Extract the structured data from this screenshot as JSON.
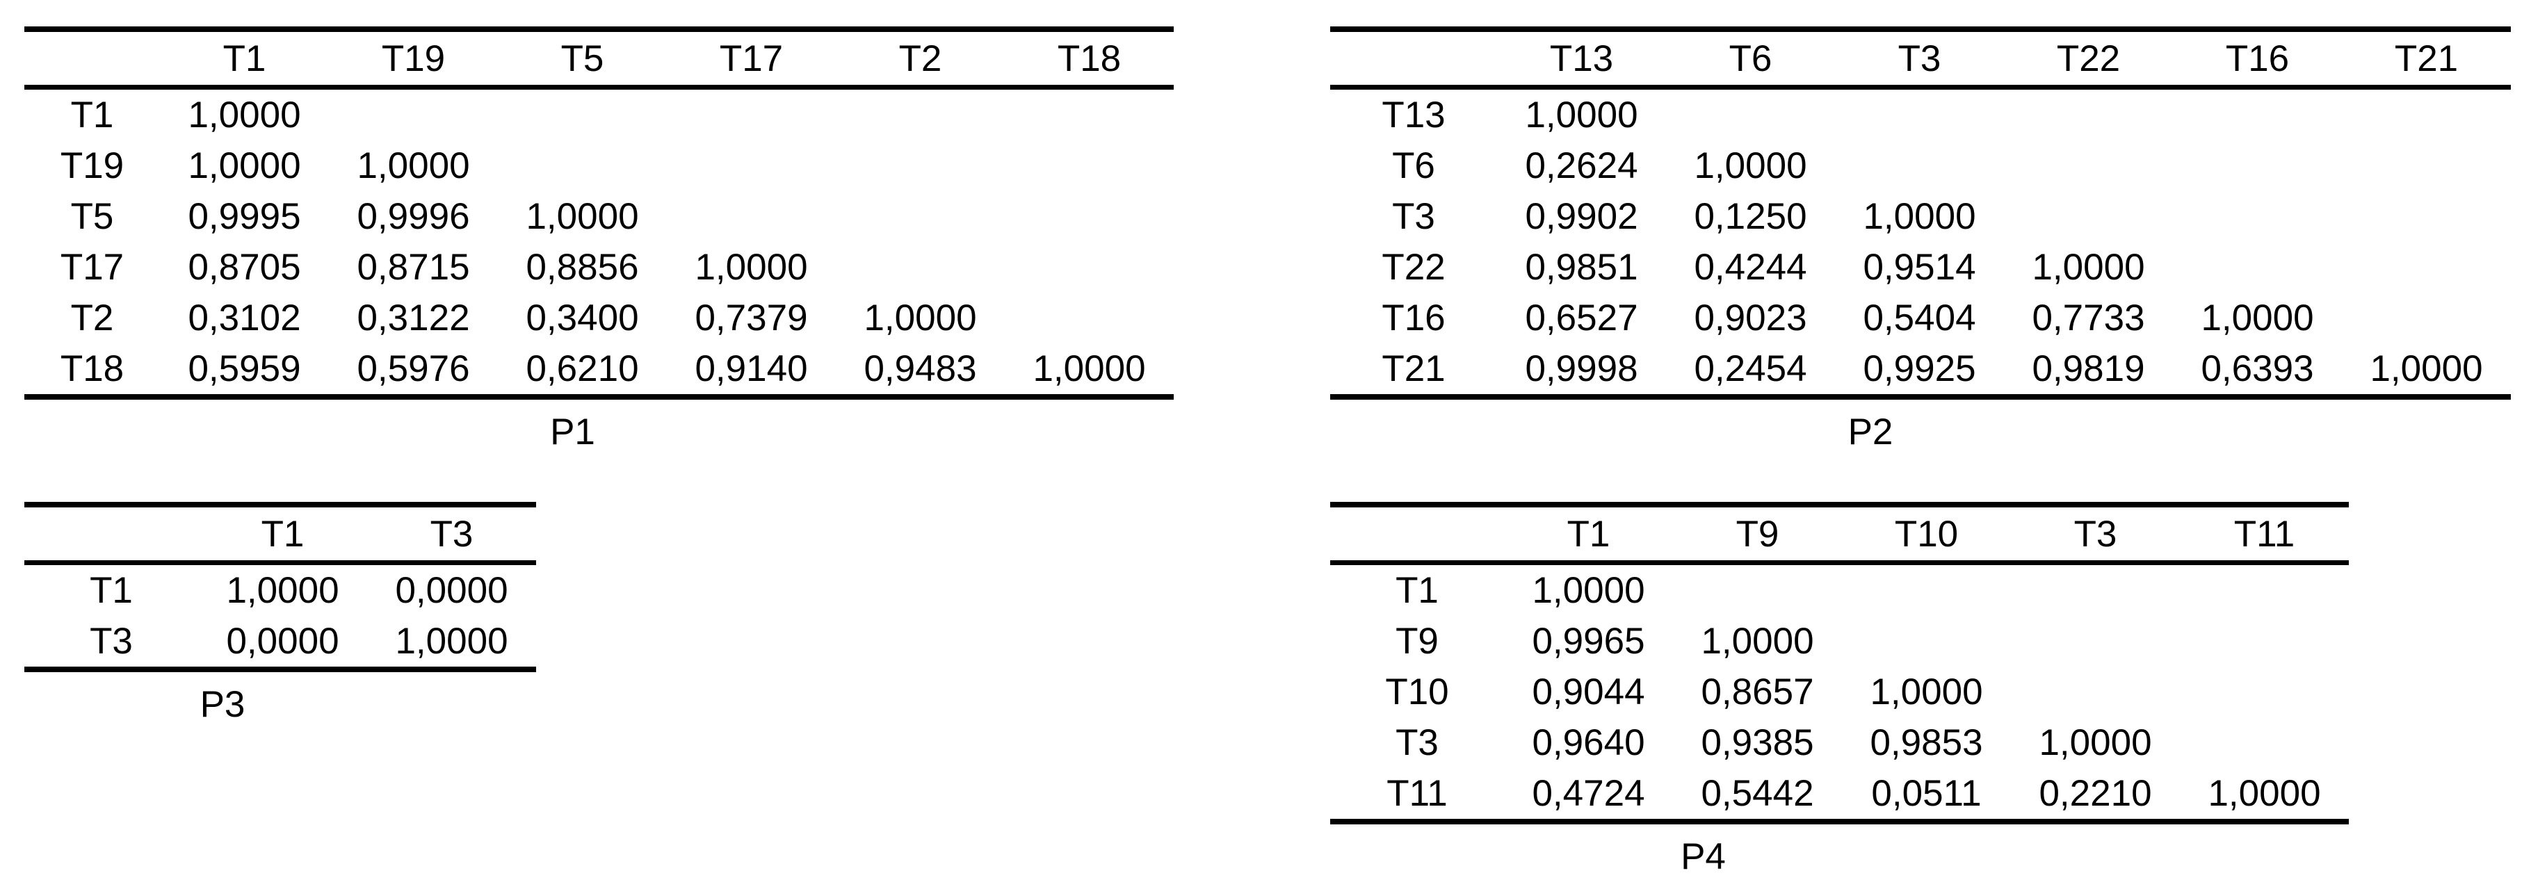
{
  "colors": {
    "background": "#ffffff",
    "text": "#000000",
    "rule": "#000000"
  },
  "tables": [
    {
      "caption": "P1",
      "columns": [
        "T1",
        "T19",
        "T5",
        "T17",
        "T2",
        "T18"
      ],
      "rows": [
        {
          "label": "T1",
          "values": [
            "1,0000"
          ]
        },
        {
          "label": "T19",
          "values": [
            "1,0000",
            "1,0000"
          ]
        },
        {
          "label": "T5",
          "values": [
            "0,9995",
            "0,9996",
            "1,0000"
          ]
        },
        {
          "label": "T17",
          "values": [
            "0,8705",
            "0,8715",
            "0,8856",
            "1,0000"
          ]
        },
        {
          "label": "T2",
          "values": [
            "0,3102",
            "0,3122",
            "0,3400",
            "0,7379",
            "1,0000"
          ]
        },
        {
          "label": "T18",
          "values": [
            "0,5959",
            "0,5976",
            "0,6210",
            "0,9140",
            "0,9483",
            "1,0000"
          ]
        }
      ]
    },
    {
      "caption": "P2",
      "columns": [
        "T13",
        "T6",
        "T3",
        "T22",
        "T16",
        "T21"
      ],
      "rows": [
        {
          "label": "T13",
          "values": [
            "1,0000"
          ]
        },
        {
          "label": "T6",
          "values": [
            "0,2624",
            "1,0000"
          ]
        },
        {
          "label": "T3",
          "values": [
            "0,9902",
            "0,1250",
            "1,0000"
          ]
        },
        {
          "label": "T22",
          "values": [
            "0,9851",
            "0,4244",
            "0,9514",
            "1,0000"
          ]
        },
        {
          "label": "T16",
          "values": [
            "0,6527",
            "0,9023",
            "0,5404",
            "0,7733",
            "1,0000"
          ]
        },
        {
          "label": "T21",
          "values": [
            "0,9998",
            "0,2454",
            "0,9925",
            "0,9819",
            "0,6393",
            "1,0000"
          ]
        }
      ]
    },
    {
      "caption": "P3",
      "columns": [
        "T1",
        "T3"
      ],
      "rows": [
        {
          "label": "T1",
          "values": [
            "1,0000",
            "0,0000"
          ]
        },
        {
          "label": "T3",
          "values": [
            "0,0000",
            "1,0000"
          ]
        }
      ]
    },
    {
      "caption": "P4",
      "columns": [
        "T1",
        "T9",
        "T10",
        "T3",
        "T11"
      ],
      "rows": [
        {
          "label": "T1",
          "values": [
            "1,0000"
          ]
        },
        {
          "label": "T9",
          "values": [
            "0,9965",
            "1,0000"
          ]
        },
        {
          "label": "T10",
          "values": [
            "0,9044",
            "0,8657",
            "1,0000"
          ]
        },
        {
          "label": "T3",
          "values": [
            "0,9640",
            "0,9385",
            "0,9853",
            "1,0000"
          ]
        },
        {
          "label": "T11",
          "values": [
            "0,4724",
            "0,5442",
            "0,0511",
            "0,2210",
            "1,0000"
          ]
        }
      ]
    }
  ]
}
